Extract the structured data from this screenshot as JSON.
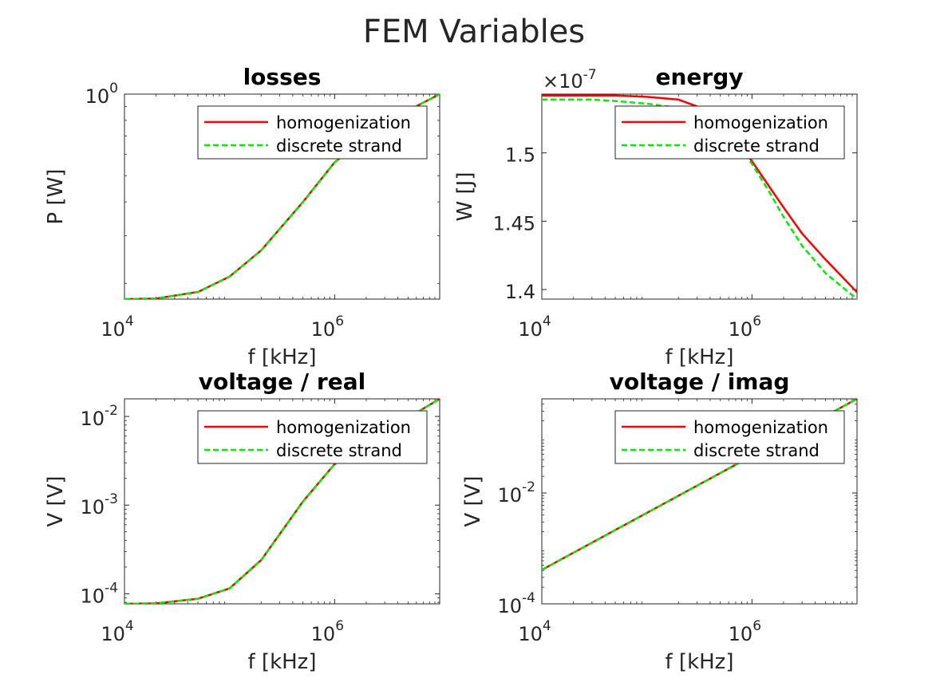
{
  "figure": {
    "title": "FEM Variables"
  },
  "chart_data": [
    {
      "type": "line",
      "title": "losses",
      "xlabel": "f [kHz]",
      "ylabel": "P [W]",
      "xscale": "log",
      "yscale": "log",
      "xlim": [
        10000,
        10000000
      ],
      "ylim": [
        0.175,
        1.0
      ],
      "xticks": [
        {
          "value": 10000,
          "base": "10",
          "exp": "4"
        },
        {
          "value": 1000000,
          "base": "10",
          "exp": "6"
        }
      ],
      "yticks": [
        {
          "value": 1.0,
          "base": "10",
          "exp": "0"
        }
      ],
      "multiplier": "",
      "legend_position": "top-right",
      "series": [
        {
          "name": "homogenization",
          "color": "#ff0000",
          "style": "solid",
          "x": [
            10000,
            20000,
            50000,
            100000,
            200000,
            500000,
            1000000,
            2000000,
            5000000,
            10000000
          ],
          "y": [
            0.175,
            0.176,
            0.186,
            0.212,
            0.265,
            0.4,
            0.56,
            0.7,
            0.87,
            1.0
          ]
        },
        {
          "name": "discrete strand",
          "color": "#00ee00",
          "style": "dashed",
          "x": [
            10000,
            20000,
            50000,
            100000,
            200000,
            500000,
            1000000,
            2000000,
            5000000,
            10000000
          ],
          "y": [
            0.175,
            0.176,
            0.186,
            0.212,
            0.265,
            0.4,
            0.56,
            0.7,
            0.87,
            1.0
          ]
        }
      ]
    },
    {
      "type": "line",
      "title": "energy",
      "xlabel": "f [kHz]",
      "ylabel": "W [J]",
      "xscale": "log",
      "yscale": "linear",
      "xlim": [
        10000,
        10000000
      ],
      "ylim": [
        1.393,
        1.543
      ],
      "xticks": [
        {
          "value": 10000,
          "base": "10",
          "exp": "4"
        },
        {
          "value": 1000000,
          "base": "10",
          "exp": "6"
        }
      ],
      "yticks": [
        {
          "value": 1.4,
          "label": "1.4"
        },
        {
          "value": 1.45,
          "label": "1.45"
        },
        {
          "value": 1.5,
          "label": "1.5"
        }
      ],
      "multiplier": "×10",
      "multiplier_exp": "-7",
      "legend_position": "top-right",
      "series": [
        {
          "name": "homogenization",
          "color": "#ff0000",
          "style": "solid",
          "x": [
            10000,
            50000,
            100000,
            200000,
            300000,
            500000,
            700000,
            1000000,
            1500000,
            2000000,
            3000000,
            5000000,
            10000000
          ],
          "y": [
            1.542,
            1.542,
            1.541,
            1.539,
            1.534,
            1.523,
            1.51,
            1.494,
            1.474,
            1.46,
            1.441,
            1.422,
            1.398
          ]
        },
        {
          "name": "discrete strand",
          "color": "#00ee00",
          "style": "dashed",
          "x": [
            10000,
            30000,
            50000,
            100000,
            200000,
            300000,
            500000,
            700000,
            1000000,
            1500000,
            2000000,
            3000000,
            5000000,
            10000000
          ],
          "y": [
            1.539,
            1.539,
            1.538,
            1.536,
            1.533,
            1.528,
            1.518,
            1.507,
            1.492,
            1.47,
            1.453,
            1.432,
            1.412,
            1.393
          ]
        }
      ]
    },
    {
      "type": "line",
      "title": "voltage / real",
      "xlabel": "f [kHz]",
      "ylabel": "V [V]",
      "xscale": "log",
      "yscale": "log",
      "xlim": [
        10000,
        10000000
      ],
      "ylim": [
        7.7e-05,
        0.0158
      ],
      "xticks": [
        {
          "value": 10000,
          "base": "10",
          "exp": "4"
        },
        {
          "value": 1000000,
          "base": "10",
          "exp": "6"
        }
      ],
      "yticks": [
        {
          "value": 0.0001,
          "base": "10",
          "exp": "-4"
        },
        {
          "value": 0.001,
          "base": "10",
          "exp": "-3"
        },
        {
          "value": 0.01,
          "base": "10",
          "exp": "-2"
        }
      ],
      "multiplier": "",
      "legend_position": "top-right",
      "series": [
        {
          "name": "homogenization",
          "color": "#ff0000",
          "style": "solid",
          "x": [
            10000,
            20000,
            50000,
            100000,
            200000,
            500000,
            1000000,
            2000000,
            5000000,
            10000000
          ],
          "y": [
            7.7e-05,
            7.8e-05,
            8.8e-05,
            0.000115,
            0.00024,
            0.0011,
            0.0029,
            0.0052,
            0.0097,
            0.0158
          ]
        },
        {
          "name": "discrete strand",
          "color": "#00ee00",
          "style": "dashed",
          "x": [
            10000,
            20000,
            50000,
            100000,
            200000,
            500000,
            1000000,
            2000000,
            5000000,
            10000000
          ],
          "y": [
            7.7e-05,
            7.8e-05,
            8.8e-05,
            0.000115,
            0.00024,
            0.0011,
            0.0029,
            0.0052,
            0.0097,
            0.0158
          ]
        }
      ]
    },
    {
      "type": "line",
      "title": "voltage / imag",
      "xlabel": "f [kHz]",
      "ylabel": "V [V]",
      "xscale": "log",
      "yscale": "log",
      "xlim": [
        10000,
        10000000
      ],
      "ylim": [
        0.0001,
        0.5
      ],
      "xticks": [
        {
          "value": 10000,
          "base": "10",
          "exp": "4"
        },
        {
          "value": 1000000,
          "base": "10",
          "exp": "6"
        }
      ],
      "yticks": [
        {
          "value": 0.0001,
          "base": "10",
          "exp": "-4"
        },
        {
          "value": 0.01,
          "base": "10",
          "exp": "-2"
        }
      ],
      "multiplier": "",
      "legend_position": "top-right",
      "series": [
        {
          "name": "homogenization",
          "color": "#ff0000",
          "style": "solid",
          "x": [
            10000,
            10000000
          ],
          "y": [
            0.00041,
            0.5
          ]
        },
        {
          "name": "discrete strand",
          "color": "#00ee00",
          "style": "dashed",
          "x": [
            10000,
            10000000
          ],
          "y": [
            0.00041,
            0.5
          ]
        }
      ]
    }
  ]
}
